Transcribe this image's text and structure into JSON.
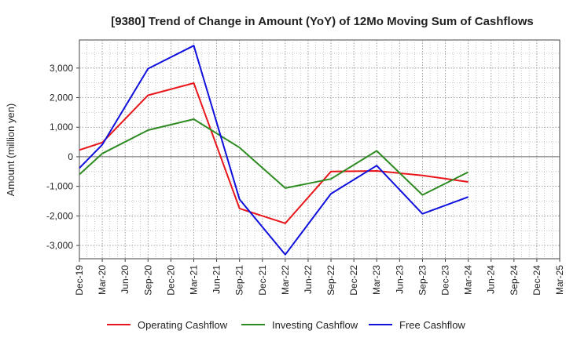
{
  "chart_data": {
    "type": "line",
    "title": "[9380]  Trend of Change in Amount (YoY) of 12Mo Moving Sum of Cashflows",
    "xlabel": "",
    "ylabel": "Amount (million yen)",
    "ylim": [
      -3450,
      3950
    ],
    "yticks": [
      3000,
      2000,
      1000,
      0,
      -1000,
      -2000,
      -3000
    ],
    "ytick_labels": [
      "3,000",
      "2,000",
      "1,000",
      "0",
      "-1,000",
      "-2,000",
      "-3,000"
    ],
    "categories": [
      "Dec-19",
      "Mar-20",
      "Jun-20",
      "Sep-20",
      "Dec-20",
      "Mar-21",
      "Jun-21",
      "Sep-21",
      "Dec-21",
      "Mar-22",
      "Jun-22",
      "Sep-22",
      "Dec-22",
      "Mar-23",
      "Jun-23",
      "Sep-23",
      "Dec-23",
      "Mar-24",
      "Jun-24",
      "Sep-24",
      "Dec-24",
      "Mar-25"
    ],
    "grid": true,
    "legend_position": "bottom",
    "series": [
      {
        "name": "Operating Cashflow",
        "color": "#e8161b",
        "values": [
          230,
          480,
          null,
          2080,
          null,
          2490,
          null,
          -1750,
          null,
          -2250,
          null,
          -500,
          null,
          -480,
          null,
          -630,
          null,
          -850,
          null,
          null,
          null,
          null
        ]
      },
      {
        "name": "Investing Cashflow",
        "color": "#2e8b22",
        "values": [
          -600,
          110,
          null,
          900,
          null,
          1270,
          null,
          310,
          null,
          -1060,
          null,
          -750,
          null,
          200,
          null,
          -1290,
          null,
          -520,
          null,
          null,
          null,
          null
        ]
      },
      {
        "name": "Free Cashflow",
        "color": "#1010dd",
        "values": [
          -380,
          410,
          null,
          2980,
          null,
          3760,
          null,
          -1440,
          null,
          -3310,
          null,
          -1250,
          null,
          -300,
          null,
          -1930,
          null,
          -1360,
          null,
          null,
          null,
          null
        ]
      }
    ]
  }
}
